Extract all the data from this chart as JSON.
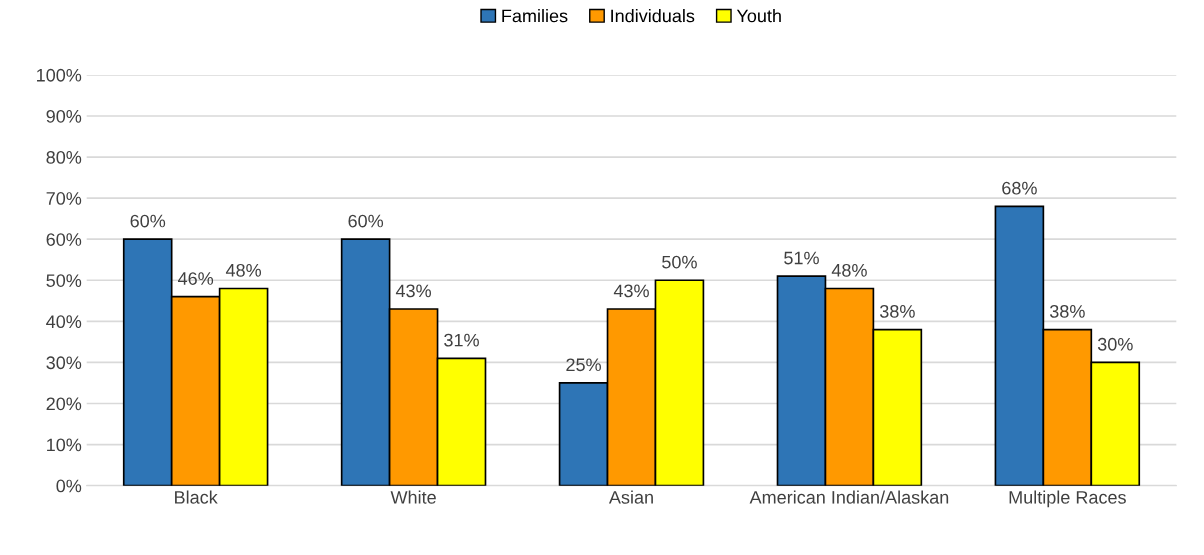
{
  "chart_data": {
    "type": "bar",
    "categories": [
      "Black",
      "White",
      "Asian",
      "American Indian/Alaskan",
      "Multiple Races"
    ],
    "series": [
      {
        "name": "Families",
        "color": "#2e75b6",
        "values": [
          60,
          60,
          25,
          51,
          68
        ],
        "value_labels": [
          "60%",
          "60%",
          "25%",
          "51%",
          "68%"
        ]
      },
      {
        "name": "Individuals",
        "color": "#ff9900",
        "values": [
          46,
          43,
          43,
          48,
          38
        ],
        "value_labels": [
          "46%",
          "43%",
          "43%",
          "48%",
          "38%"
        ]
      },
      {
        "name": "Youth",
        "color": "#ffff00",
        "values": [
          48,
          31,
          50,
          38,
          30
        ],
        "value_labels": [
          "48%",
          "31%",
          "50%",
          "38%",
          "30%"
        ]
      }
    ],
    "ylim": [
      0,
      100
    ],
    "yticks": [
      {
        "value": 0,
        "label": "0%"
      },
      {
        "value": 10,
        "label": "10%"
      },
      {
        "value": 20,
        "label": "20%"
      },
      {
        "value": 30,
        "label": "30%"
      },
      {
        "value": 40,
        "label": "40%"
      },
      {
        "value": 50,
        "label": "50%"
      },
      {
        "value": 60,
        "label": "60%"
      },
      {
        "value": 70,
        "label": "70%"
      },
      {
        "value": 80,
        "label": "80%"
      },
      {
        "value": 90,
        "label": "90%"
      },
      {
        "value": 100,
        "label": "100%"
      }
    ],
    "grid": "y",
    "legend": "top"
  }
}
